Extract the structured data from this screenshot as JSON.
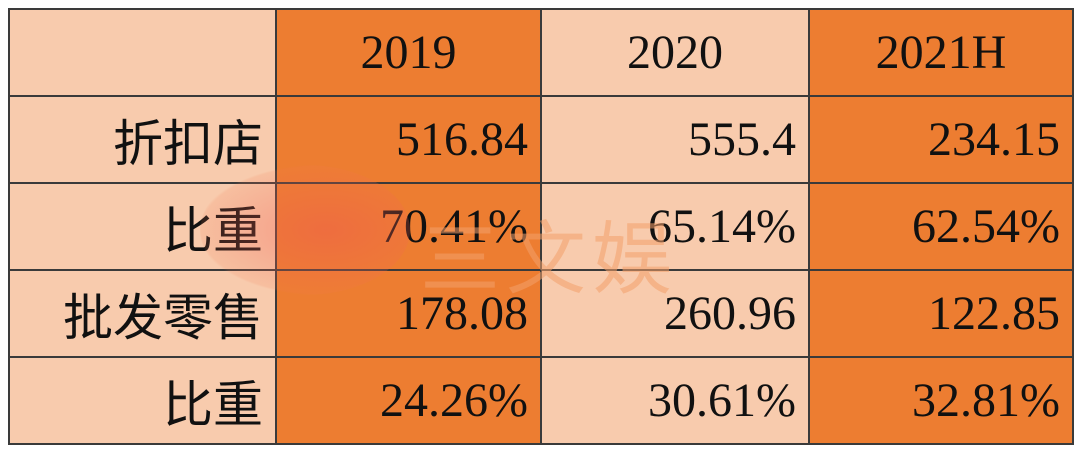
{
  "table": {
    "header": [
      "",
      "2019",
      "2020",
      "2021H"
    ],
    "rows": [
      [
        "折扣店",
        "516.84",
        "555.4",
        "234.15"
      ],
      [
        "比重",
        "70.41%",
        "65.14%",
        "62.54%"
      ],
      [
        "批发零售",
        "178.08",
        "260.96",
        "122.85"
      ],
      [
        "比重",
        "24.26%",
        "30.61%",
        "32.81%"
      ]
    ]
  },
  "watermark": "三文娱"
}
